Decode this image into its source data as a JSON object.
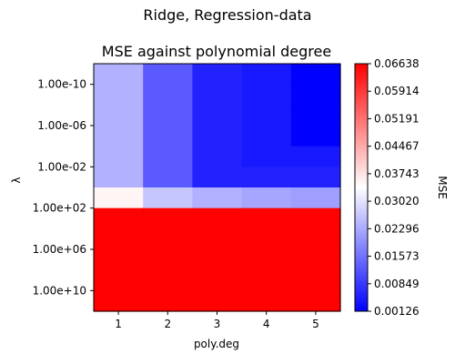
{
  "suptitle": "Ridge, Regression-data",
  "chart_data": {
    "type": "heatmap",
    "title": "MSE against polynomial degree",
    "xlabel": "poly.deg",
    "ylabel": "λ",
    "x_categories": [
      "1",
      "2",
      "3",
      "4",
      "5"
    ],
    "y_categories": [
      "1.00e-10",
      "1.00e-06",
      "1.00e-02",
      "1.00e+02",
      "1.00e+06",
      "1.00e+10"
    ],
    "row_lambda_labels": [
      "1.00e-10",
      "",
      "1.00e-06",
      "",
      "1.00e-02",
      "",
      "1.00e+02",
      "",
      "1.00e+06",
      "",
      "1.00e+10",
      ""
    ],
    "values": [
      [
        0.0238,
        0.0127,
        0.0056,
        0.0045,
        0.0013
      ],
      [
        0.0238,
        0.0127,
        0.0056,
        0.0045,
        0.0013
      ],
      [
        0.0238,
        0.0127,
        0.0056,
        0.0045,
        0.0013
      ],
      [
        0.0238,
        0.0127,
        0.0056,
        0.0045,
        0.0013
      ],
      [
        0.0238,
        0.0127,
        0.0056,
        0.0045,
        0.0045
      ],
      [
        0.0238,
        0.0127,
        0.0056,
        0.0056,
        0.0056
      ],
      [
        0.0351,
        0.0265,
        0.0238,
        0.0225,
        0.0215
      ],
      [
        0.0663,
        0.0663,
        0.0663,
        0.0663,
        0.0663
      ],
      [
        0.0663,
        0.0663,
        0.0663,
        0.0663,
        0.0663
      ],
      [
        0.0663,
        0.0663,
        0.0663,
        0.0663,
        0.0663
      ],
      [
        0.0663,
        0.0663,
        0.0663,
        0.0663,
        0.0663
      ],
      [
        0.0663,
        0.0663,
        0.0663,
        0.0663,
        0.0663
      ]
    ],
    "colorbar": {
      "label": "MSE",
      "colormap": "bwr",
      "min": 0.00126,
      "max": 0.06638,
      "ticks": [
        "0.06638",
        "0.05914",
        "0.05191",
        "0.04467",
        "0.03743",
        "0.03020",
        "0.02296",
        "0.01573",
        "0.00849",
        "0.00126"
      ]
    }
  }
}
